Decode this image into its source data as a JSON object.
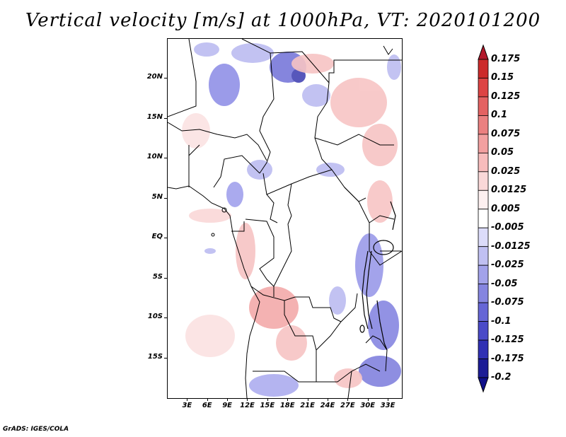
{
  "title": "Vertical velocity [m/s] at 1000hPa, VT: 2020101200",
  "credit": "GrADS: IGES/COLA",
  "map": {
    "lat_labels": [
      "20N",
      "15N",
      "10N",
      "5N",
      "EQ",
      "5S",
      "10S",
      "15S"
    ],
    "lon_labels": [
      "3E",
      "6E",
      "9E",
      "12E",
      "15E",
      "18E",
      "21E",
      "24E",
      "27E",
      "30E",
      "33E"
    ],
    "lat_values": [
      20,
      15,
      10,
      5,
      0,
      -5,
      -10,
      -15
    ],
    "lon_values": [
      3,
      6,
      9,
      12,
      15,
      18,
      21,
      24,
      27,
      30,
      33
    ],
    "extent": {
      "lon_min": 0,
      "lon_max": 35,
      "lat_min": -20,
      "lat_max": 25
    }
  },
  "colorbar": {
    "labels": [
      "0.175",
      "0.15",
      "0.125",
      "0.1",
      "0.075",
      "0.05",
      "0.025",
      "0.0125",
      "0.005",
      "-0.005",
      "-0.0125",
      "-0.025",
      "-0.05",
      "-0.075",
      "-0.1",
      "-0.125",
      "-0.175",
      "-0.2"
    ],
    "colors": [
      "#b2182b",
      "#cc2b2b",
      "#dd4444",
      "#e46262",
      "#eb8080",
      "#f2a0a0",
      "#f7bcbc",
      "#fad8d8",
      "#fdf0f0",
      "#ffffff",
      "#dcdcfa",
      "#c0c0f2",
      "#a2a2ea",
      "#8585e0",
      "#6666d6",
      "#4a4ac8",
      "#3030b4",
      "#1c1c96",
      "#10108a"
    ]
  }
}
